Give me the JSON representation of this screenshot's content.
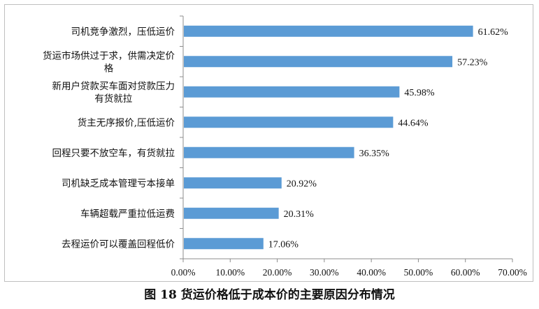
{
  "caption": "图 18  货运价格低于成本价的主要原因分布情况",
  "chart_data": {
    "type": "bar",
    "orientation": "horizontal",
    "title": "图 18  货运价格低于成本价的主要原因分布情况",
    "categories": [
      [
        "司机竞争激烈，压低运价"
      ],
      [
        "货运市场供过于求，供需决定价",
        "格"
      ],
      [
        "新用户贷款买车面对贷款压力",
        "有货就拉"
      ],
      [
        "货主无序报价,压低运价"
      ],
      [
        "回程只要不放空车，有货就拉"
      ],
      [
        "司机缺乏成本管理亏本接单"
      ],
      [
        "车辆超载严重拉低运费"
      ],
      [
        "去程运价可以覆盖回程低价"
      ]
    ],
    "values": [
      61.62,
      57.23,
      45.98,
      44.64,
      36.35,
      20.92,
      20.31,
      17.06
    ],
    "value_labels": [
      "61.62%",
      "57.23%",
      "45.98%",
      "44.64%",
      "36.35%",
      "20.92%",
      "20.31%",
      "17.06%"
    ],
    "x_ticks": [
      0,
      10,
      20,
      30,
      40,
      50,
      60,
      70
    ],
    "x_tick_labels": [
      "0.00%",
      "10.00%",
      "20.00%",
      "30.00%",
      "40.00%",
      "50.00%",
      "60.00%",
      "70.00%"
    ],
    "xlim": [
      0,
      70
    ],
    "grid": false,
    "bar_color": "#5b9bd5"
  }
}
